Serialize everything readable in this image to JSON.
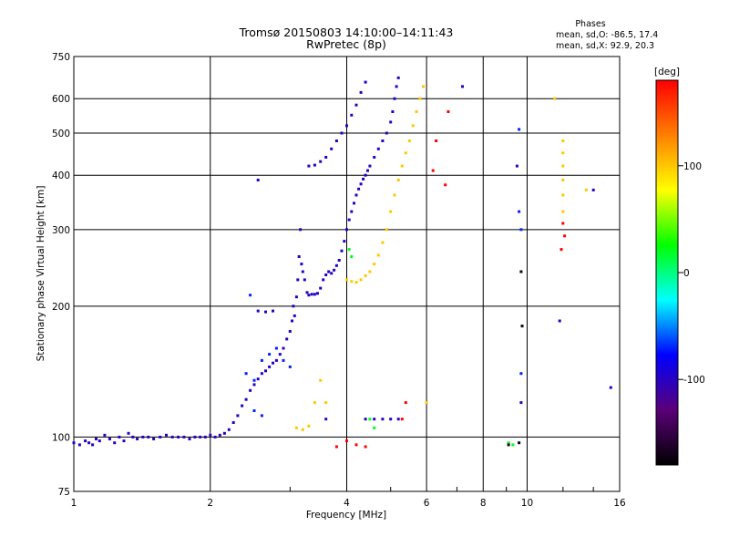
{
  "chart_data": {
    "type": "scatter",
    "title": "Tromsø 20150803 14:10:00–14:11:43",
    "subtitle": "RwPretec (8p)",
    "stats_header": "Phases",
    "stats_lines": [
      "mean, sd,O: -86.5, 17.4",
      "mean, sd,X: 92.9, 20.3"
    ],
    "xlabel": "Frequency [MHz]",
    "ylabel": "Stationary phase Virtual Height [km]",
    "x_scale": "log",
    "y_scale": "log",
    "xlim": [
      1,
      16
    ],
    "ylim": [
      75,
      750
    ],
    "x_ticks": [
      1,
      2,
      4,
      6,
      8,
      10,
      16
    ],
    "x_tick_labels": [
      "1",
      "2",
      "4",
      "6",
      "8",
      "10",
      "16"
    ],
    "y_ticks": [
      75,
      100,
      200,
      300,
      400,
      500,
      600,
      750
    ],
    "y_tick_labels": [
      "75",
      "100",
      "200",
      "300",
      "400",
      "500",
      "600",
      "750"
    ],
    "grid": true,
    "colorbar": {
      "label": "[deg]",
      "range": [
        -180,
        180
      ],
      "ticks": [
        100,
        0,
        -100
      ],
      "tick_labels": [
        "100",
        "0",
        "-100"
      ],
      "colors": [
        "#000000",
        "#5a0078",
        "#0000ff",
        "#00ffff",
        "#00ff00",
        "#ffff00",
        "#ff8000",
        "#ff0000"
      ]
    },
    "series": [
      {
        "phase": -100,
        "points": [
          [
            1.0,
            97
          ],
          [
            1.03,
            96
          ],
          [
            1.06,
            98
          ],
          [
            1.08,
            97
          ],
          [
            1.1,
            96
          ],
          [
            1.12,
            99
          ],
          [
            1.14,
            98
          ],
          [
            1.17,
            101
          ],
          [
            1.2,
            99
          ],
          [
            1.23,
            97
          ],
          [
            1.26,
            100
          ],
          [
            1.29,
            98
          ],
          [
            1.32,
            102
          ],
          [
            1.35,
            100
          ],
          [
            1.38,
            99
          ],
          [
            1.42,
            100
          ],
          [
            1.46,
            100
          ],
          [
            1.5,
            99
          ],
          [
            1.55,
            100
          ],
          [
            1.6,
            101
          ],
          [
            1.65,
            100
          ],
          [
            1.7,
            100
          ],
          [
            1.75,
            100
          ],
          [
            1.8,
            99
          ],
          [
            1.85,
            100
          ],
          [
            1.9,
            100
          ],
          [
            1.95,
            100
          ],
          [
            2.0,
            101
          ],
          [
            2.05,
            100
          ],
          [
            2.1,
            101
          ],
          [
            2.15,
            102
          ],
          [
            2.2,
            104
          ],
          [
            2.25,
            108
          ],
          [
            2.3,
            112
          ],
          [
            2.35,
            118
          ],
          [
            2.4,
            122
          ],
          [
            2.45,
            128
          ],
          [
            2.5,
            132
          ],
          [
            2.55,
            136
          ],
          [
            2.6,
            140
          ],
          [
            2.65,
            142
          ],
          [
            2.7,
            145
          ],
          [
            2.75,
            148
          ],
          [
            2.8,
            150
          ],
          [
            2.85,
            155
          ],
          [
            2.9,
            160
          ],
          [
            2.95,
            168
          ],
          [
            3.0,
            175
          ],
          [
            3.03,
            185
          ],
          [
            3.05,
            200
          ],
          [
            3.07,
            190
          ],
          [
            3.1,
            210
          ],
          [
            3.12,
            230
          ],
          [
            3.14,
            260
          ],
          [
            3.16,
            300
          ],
          [
            3.18,
            250
          ],
          [
            3.2,
            240
          ],
          [
            3.23,
            230
          ],
          [
            3.27,
            215
          ],
          [
            3.3,
            212
          ],
          [
            3.35,
            213
          ],
          [
            3.4,
            213
          ],
          [
            3.45,
            214
          ],
          [
            3.5,
            220
          ],
          [
            3.55,
            230
          ],
          [
            3.6,
            236
          ],
          [
            3.65,
            240
          ],
          [
            3.7,
            238
          ],
          [
            3.75,
            242
          ],
          [
            3.8,
            248
          ],
          [
            3.85,
            255
          ],
          [
            3.9,
            268
          ],
          [
            3.95,
            282
          ],
          [
            4.0,
            300
          ],
          [
            4.05,
            316
          ],
          [
            4.1,
            330
          ],
          [
            4.15,
            345
          ],
          [
            4.2,
            360
          ],
          [
            4.25,
            372
          ],
          [
            4.3,
            382
          ],
          [
            4.35,
            392
          ],
          [
            4.4,
            400
          ],
          [
            4.45,
            410
          ],
          [
            4.5,
            420
          ],
          [
            4.6,
            440
          ],
          [
            4.7,
            460
          ],
          [
            4.8,
            480
          ],
          [
            4.9,
            500
          ],
          [
            5.0,
            530
          ],
          [
            5.05,
            560
          ],
          [
            5.1,
            600
          ],
          [
            5.15,
            640
          ],
          [
            3.3,
            420
          ],
          [
            3.4,
            422
          ],
          [
            3.5,
            430
          ],
          [
            3.6,
            440
          ],
          [
            3.7,
            460
          ],
          [
            3.8,
            480
          ],
          [
            3.9,
            500
          ],
          [
            4.0,
            520
          ],
          [
            4.1,
            550
          ],
          [
            4.2,
            580
          ],
          [
            4.3,
            620
          ],
          [
            4.4,
            655
          ],
          [
            5.2,
            670
          ],
          [
            7.2,
            640
          ],
          [
            2.55,
            195
          ],
          [
            2.65,
            194
          ],
          [
            2.75,
            195
          ],
          [
            2.55,
            390
          ],
          [
            4.4,
            110
          ],
          [
            4.6,
            110
          ],
          [
            4.8,
            110
          ],
          [
            5.0,
            110
          ],
          [
            5.2,
            110
          ],
          [
            3.6,
            110
          ],
          [
            9.5,
            420
          ],
          [
            9.7,
            120
          ],
          [
            11.8,
            185
          ],
          [
            14.0,
            370
          ],
          [
            15.3,
            130
          ]
        ]
      },
      {
        "phase": -70,
        "points": [
          [
            2.4,
            140
          ],
          [
            2.5,
            135
          ],
          [
            2.6,
            150
          ],
          [
            2.7,
            155
          ],
          [
            2.8,
            160
          ],
          [
            2.9,
            150
          ],
          [
            3.0,
            145
          ],
          [
            2.5,
            115
          ],
          [
            2.6,
            112
          ],
          [
            2.45,
            212
          ],
          [
            9.6,
            330
          ],
          [
            9.7,
            300
          ],
          [
            9.7,
            140
          ],
          [
            9.6,
            510
          ]
        ]
      },
      {
        "phase": 100,
        "points": [
          [
            3.1,
            105
          ],
          [
            3.2,
            104
          ],
          [
            3.3,
            106
          ],
          [
            3.4,
            120
          ],
          [
            3.5,
            135
          ],
          [
            3.6,
            120
          ],
          [
            4.0,
            230
          ],
          [
            4.1,
            228
          ],
          [
            4.2,
            227
          ],
          [
            4.3,
            230
          ],
          [
            4.4,
            235
          ],
          [
            4.5,
            240
          ],
          [
            4.6,
            250
          ],
          [
            4.7,
            262
          ],
          [
            4.8,
            280
          ],
          [
            4.9,
            300
          ],
          [
            5.0,
            330
          ],
          [
            5.1,
            360
          ],
          [
            5.2,
            390
          ],
          [
            5.3,
            420
          ],
          [
            5.4,
            450
          ],
          [
            5.5,
            480
          ],
          [
            5.6,
            520
          ],
          [
            5.7,
            560
          ],
          [
            5.8,
            600
          ],
          [
            5.9,
            640
          ],
          [
            12.0,
            480
          ],
          [
            12.0,
            450
          ],
          [
            12.0,
            420
          ],
          [
            12.0,
            390
          ],
          [
            12.0,
            360
          ],
          [
            12.0,
            330
          ],
          [
            11.5,
            600
          ],
          [
            6.0,
            120
          ],
          [
            13.5,
            370
          ]
        ]
      },
      {
        "phase": 180,
        "points": [
          [
            3.8,
            95
          ],
          [
            4.0,
            98
          ],
          [
            4.2,
            96
          ],
          [
            4.4,
            95
          ],
          [
            5.3,
            110
          ],
          [
            5.4,
            120
          ],
          [
            6.6,
            380
          ],
          [
            6.2,
            410
          ],
          [
            6.7,
            560
          ],
          [
            6.3,
            480
          ],
          [
            12.1,
            290
          ],
          [
            12.0,
            310
          ],
          [
            11.9,
            270
          ]
        ]
      },
      {
        "phase": 20,
        "points": [
          [
            4.05,
            270
          ],
          [
            4.1,
            260
          ],
          [
            4.5,
            110
          ],
          [
            4.6,
            105
          ],
          [
            9.1,
            97
          ],
          [
            9.3,
            96
          ]
        ]
      },
      {
        "phase": -170,
        "points": [
          [
            9.1,
            96
          ],
          [
            9.6,
            97
          ],
          [
            9.7,
            240
          ],
          [
            9.75,
            180
          ]
        ]
      }
    ]
  }
}
